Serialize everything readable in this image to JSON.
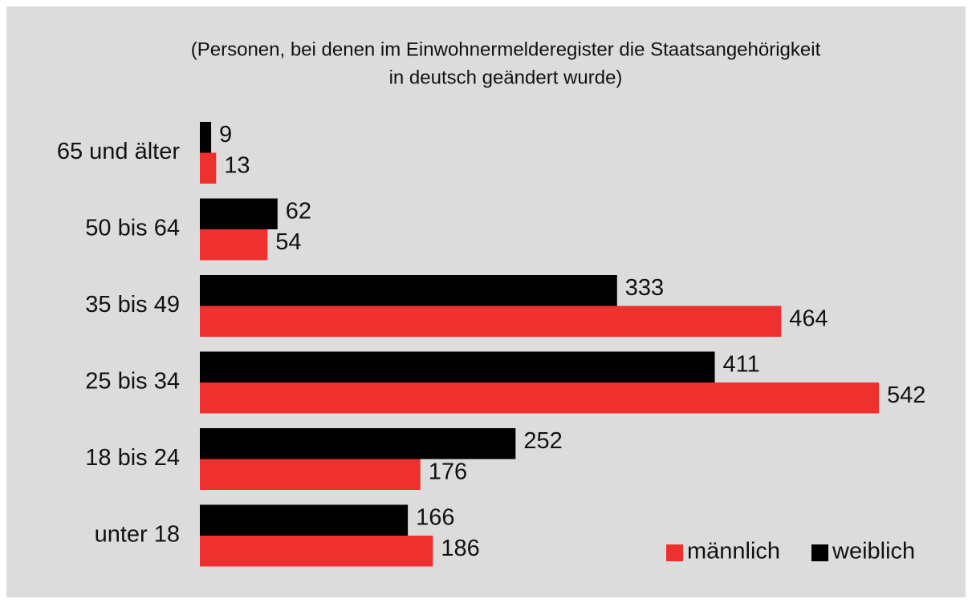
{
  "chart_data": {
    "type": "hbar",
    "title": [
      "(Personen, bei denen im Einwohnermelderegister die Staatsangehörigkeit",
      "in deutsch geändert wurde)"
    ],
    "categories": [
      "65 und älter",
      "50 bis 64",
      "35 bis 49",
      "25 bis 34",
      "18 bis 24",
      "unter 18"
    ],
    "series": [
      {
        "name": "männlich",
        "color": "#ee302e",
        "values": [
          13,
          54,
          464,
          542,
          176,
          186
        ]
      },
      {
        "name": "weiblich",
        "color": "#000000",
        "values": [
          9,
          62,
          333,
          411,
          252,
          166
        ]
      }
    ],
    "xlim": [
      0,
      542
    ],
    "legend": "bottom-right"
  }
}
